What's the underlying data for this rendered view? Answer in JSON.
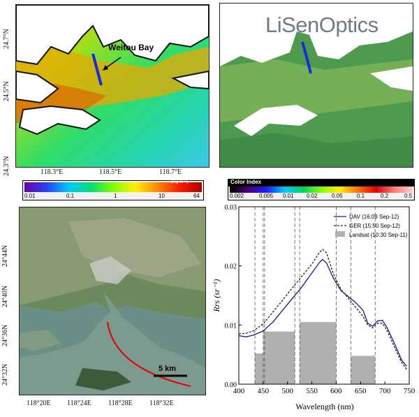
{
  "figure": {
    "panel_a": {
      "annotation": "Weitou Bay",
      "lat_ticks": [
        "24.7°N",
        "24.5°N",
        "24.3°N"
      ],
      "lon_ticks": [
        "118.3°E",
        "118.5°E",
        "118.7°E"
      ],
      "colorbar": {
        "unit": "(mg m⁻³)",
        "ticks": [
          "0.01",
          "0.1",
          "1",
          "10",
          "64"
        ]
      }
    },
    "panel_b": {
      "logo": "LiSenOptics",
      "colorbar": {
        "title": "Color Index",
        "ticks": [
          "0.002",
          "0.005",
          "0.01",
          "0.02",
          "0.05",
          "0.1",
          "0.2",
          "0.5"
        ]
      }
    },
    "panel_c": {
      "lat_ticks": [
        "24°44N",
        "24°40N",
        "24°36N",
        "24°32N"
      ],
      "lon_ticks": [
        "118°20E",
        "118°24E",
        "118°28E",
        "118°32E"
      ],
      "scale_label": "5 km"
    }
  },
  "chart_data": {
    "type": "line",
    "xlabel": "Wavelength (nm)",
    "ylabel": "Rrs (sr⁻¹)",
    "xlim": [
      400,
      750
    ],
    "ylim": [
      0,
      0.03
    ],
    "xticks": [
      "400",
      "450",
      "500",
      "550",
      "600",
      "650",
      "700",
      "750"
    ],
    "yticks": [
      "0.00",
      "0.01",
      "0.02",
      "0.03"
    ],
    "legend_position": "top-right",
    "series": [
      {
        "name": "UAV (16:09 Sep-12)",
        "color": "#1a1a7a",
        "style": "solid",
        "x": [
          400,
          415,
          430,
          450,
          470,
          490,
          510,
          530,
          550,
          565,
          572,
          580,
          595,
          610,
          625,
          640,
          655,
          665,
          675,
          685,
          695,
          705,
          720,
          735,
          745
        ],
        "y": [
          0.0082,
          0.008,
          0.0083,
          0.009,
          0.0105,
          0.0125,
          0.0145,
          0.0165,
          0.0188,
          0.0205,
          0.0211,
          0.0205,
          0.0178,
          0.0158,
          0.0148,
          0.0138,
          0.0125,
          0.0103,
          0.0098,
          0.0107,
          0.0108,
          0.0095,
          0.0068,
          0.004,
          0.003
        ]
      },
      {
        "name": "GER (15:50 Sep-12)",
        "color": "#222222",
        "style": "dashed",
        "x": [
          400,
          415,
          430,
          450,
          470,
          490,
          510,
          530,
          550,
          565,
          572,
          580,
          595,
          610,
          625,
          640,
          655,
          665,
          675,
          685,
          695,
          705,
          720,
          735,
          745
        ],
        "y": [
          0.0085,
          0.0086,
          0.009,
          0.0102,
          0.0122,
          0.0142,
          0.0163,
          0.0183,
          0.0203,
          0.0222,
          0.0228,
          0.0222,
          0.0185,
          0.016,
          0.0145,
          0.013,
          0.0115,
          0.01,
          0.0095,
          0.0103,
          0.0103,
          0.009,
          0.0062,
          0.0036,
          0.0025
        ]
      }
    ],
    "bars": {
      "name": "Landsat (10:30 Sep-11)",
      "color": "#b0b0b0",
      "items": [
        {
          "start": 433,
          "end": 453,
          "value": 0.0052
        },
        {
          "start": 450,
          "end": 515,
          "value": 0.0089
        },
        {
          "start": 525,
          "end": 600,
          "value": 0.0105
        },
        {
          "start": 630,
          "end": 680,
          "value": 0.0048
        }
      ]
    },
    "band_edges": [
      433,
      453,
      450,
      515,
      525,
      600,
      630,
      680
    ]
  }
}
